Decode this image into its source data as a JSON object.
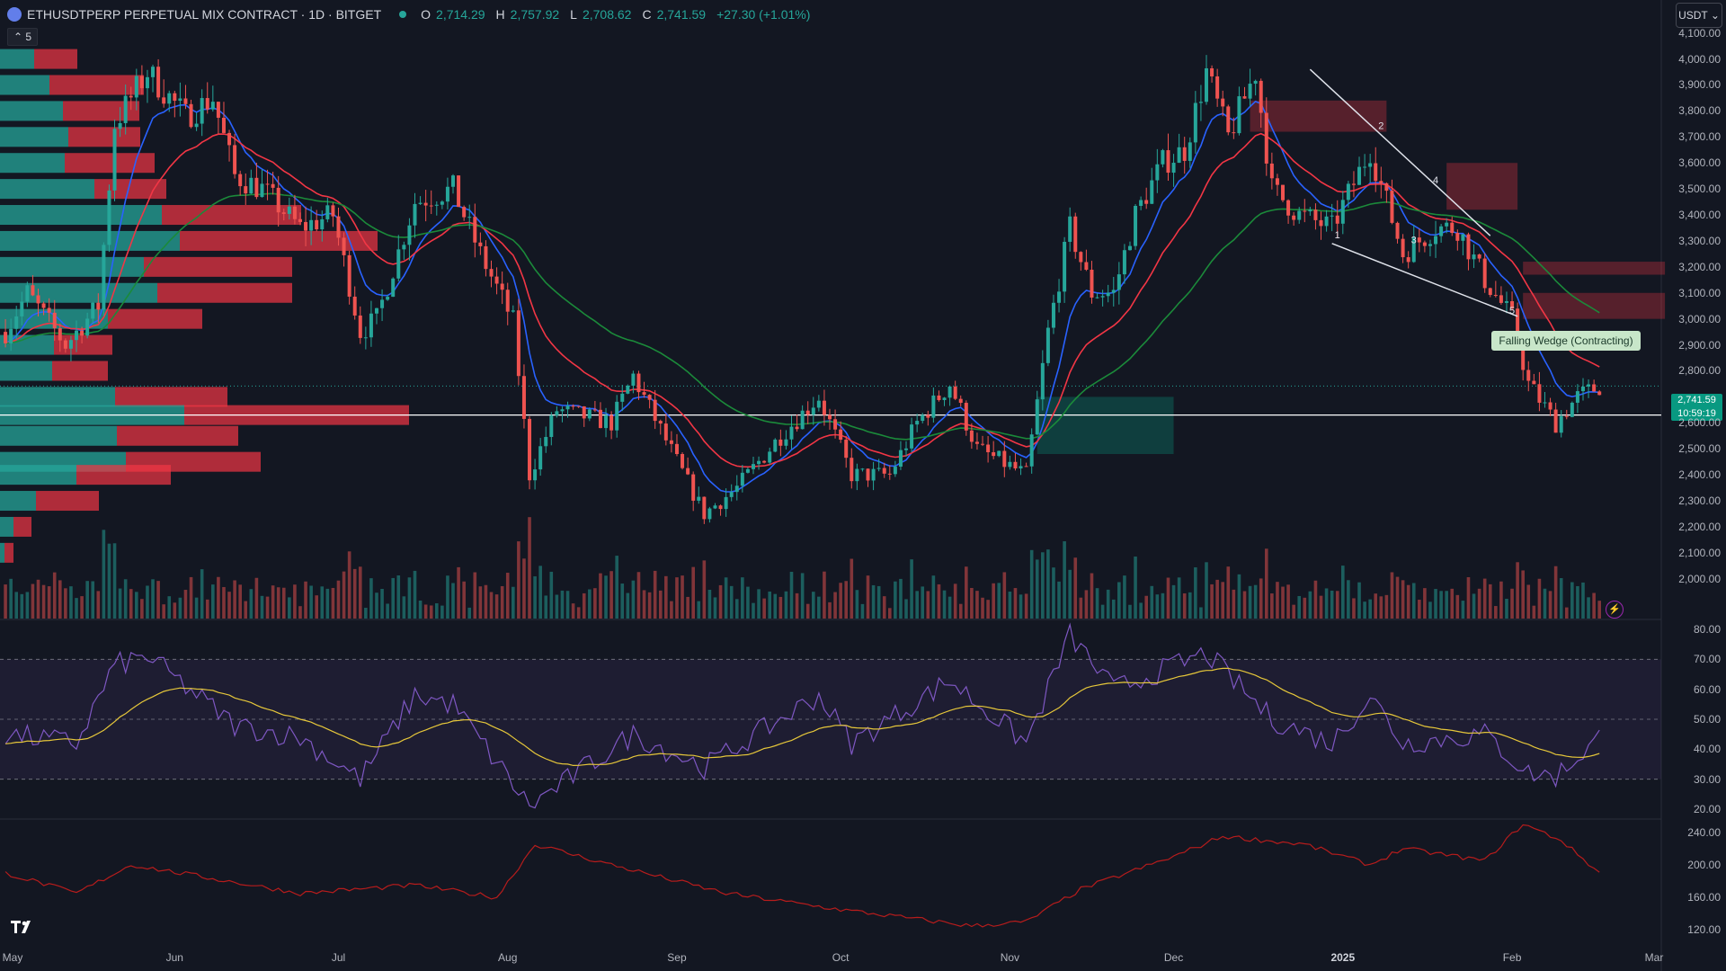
{
  "header": {
    "symbol": "ETHUSDTPERP PERPETUAL MIX CONTRACT · 1D · BITGET",
    "o_label": "O",
    "o_value": "2,714.29",
    "h_label": "H",
    "h_value": "2,757.92",
    "l_label": "L",
    "l_value": "2,708.62",
    "c_label": "C",
    "c_value": "2,741.59",
    "change": "+27.30 (+1.01%)"
  },
  "indicator_badge": "5",
  "currency_button": "USDT ⌄",
  "colors": {
    "up": "#26a69a",
    "down": "#ef5350",
    "ema_fast": "#2962ff",
    "ema_mid": "#f23645",
    "ema_slow": "#1b8a3a",
    "rsi": "#7e57c2",
    "rsi_ma": "#e6c73a",
    "atr": "#b71c1c"
  },
  "price_label": {
    "price": "2,741.59",
    "countdown": "10:59:19"
  },
  "pattern_label": "Falling Wedge (Contracting)",
  "wedge_points": [
    "1",
    "2",
    "3",
    "4",
    "5"
  ],
  "chart_data": {
    "type": "candlestick",
    "price_axis": {
      "ticks": [
        "4,100.00",
        "4,000.00",
        "3,900.00",
        "3,800.00",
        "3,700.00",
        "3,600.00",
        "3,500.00",
        "3,400.00",
        "3,300.00",
        "3,200.00",
        "3,100.00",
        "3,000.00",
        "2,900.00",
        "2,800.00",
        "2,600.00",
        "2,500.00",
        "2,400.00",
        "2,300.00",
        "2,200.00",
        "2,100.00",
        "2,000.00"
      ],
      "range": [
        1930,
        4130
      ]
    },
    "rsi_axis": {
      "ticks": [
        "80.00",
        "70.00",
        "60.00",
        "50.00",
        "40.00",
        "30.00",
        "20.00"
      ],
      "range": [
        17,
        83
      ],
      "bands": [
        70,
        50,
        30
      ]
    },
    "atr_axis": {
      "ticks": [
        "240.00",
        "200.00",
        "160.00",
        "120.00"
      ],
      "range": [
        105,
        255
      ]
    },
    "x_labels": [
      {
        "text": "May",
        "bold": false
      },
      {
        "text": "Jun",
        "bold": false
      },
      {
        "text": "Jul",
        "bold": false
      },
      {
        "text": "Aug",
        "bold": false
      },
      {
        "text": "Sep",
        "bold": false
      },
      {
        "text": "Oct",
        "bold": false
      },
      {
        "text": "Nov",
        "bold": false
      },
      {
        "text": "Dec",
        "bold": false
      },
      {
        "text": "2025",
        "bold": true
      },
      {
        "text": "Feb",
        "bold": false
      },
      {
        "text": "Mar",
        "bold": false
      }
    ],
    "horizontal_line": 2630,
    "anchors": [
      {
        "date": "2024-05-01",
        "close": 2950
      },
      {
        "date": "2024-05-05",
        "close": 3100
      },
      {
        "date": "2024-05-12",
        "close": 2900
      },
      {
        "date": "2024-05-18",
        "close": 3050
      },
      {
        "date": "2024-05-21",
        "close": 3750
      },
      {
        "date": "2024-05-27",
        "close": 3950
      },
      {
        "date": "2024-06-03",
        "close": 3780
      },
      {
        "date": "2024-06-08",
        "close": 3850
      },
      {
        "date": "2024-06-12",
        "close": 3550
      },
      {
        "date": "2024-06-17",
        "close": 3500
      },
      {
        "date": "2024-06-24",
        "close": 3350
      },
      {
        "date": "2024-06-30",
        "close": 3400
      },
      {
        "date": "2024-07-05",
        "close": 2950
      },
      {
        "date": "2024-07-08",
        "close": 3000
      },
      {
        "date": "2024-07-15",
        "close": 3450
      },
      {
        "date": "2024-07-22",
        "close": 3500
      },
      {
        "date": "2024-07-27",
        "close": 3250
      },
      {
        "date": "2024-08-02",
        "close": 2990
      },
      {
        "date": "2024-08-05",
        "close": 2400
      },
      {
        "date": "2024-08-10",
        "close": 2650
      },
      {
        "date": "2024-08-20",
        "close": 2600
      },
      {
        "date": "2024-08-24",
        "close": 2780
      },
      {
        "date": "2024-09-01",
        "close": 2450
      },
      {
        "date": "2024-09-06",
        "close": 2250
      },
      {
        "date": "2024-09-12",
        "close": 2350
      },
      {
        "date": "2024-09-20",
        "close": 2550
      },
      {
        "date": "2024-09-27",
        "close": 2700
      },
      {
        "date": "2024-10-03",
        "close": 2400
      },
      {
        "date": "2024-10-10",
        "close": 2400
      },
      {
        "date": "2024-10-15",
        "close": 2600
      },
      {
        "date": "2024-10-21",
        "close": 2750
      },
      {
        "date": "2024-10-26",
        "close": 2500
      },
      {
        "date": "2024-11-04",
        "close": 2400
      },
      {
        "date": "2024-11-08",
        "close": 2950
      },
      {
        "date": "2024-11-12",
        "close": 3350
      },
      {
        "date": "2024-11-16",
        "close": 3100
      },
      {
        "date": "2024-11-20",
        "close": 3100
      },
      {
        "date": "2024-11-24",
        "close": 3400
      },
      {
        "date": "2024-11-29",
        "close": 3600
      },
      {
        "date": "2024-12-03",
        "close": 3650
      },
      {
        "date": "2024-12-07",
        "close": 3950
      },
      {
        "date": "2024-12-11",
        "close": 3700
      },
      {
        "date": "2024-12-16",
        "close": 3950
      },
      {
        "date": "2024-12-19",
        "close": 3500
      },
      {
        "date": "2024-12-24",
        "close": 3400
      },
      {
        "date": "2024-12-30",
        "close": 3350
      },
      {
        "date": "2025-01-06",
        "close": 3650
      },
      {
        "date": "2025-01-12",
        "close": 3250
      },
      {
        "date": "2025-01-18",
        "close": 3350
      },
      {
        "date": "2025-01-22",
        "close": 3350
      },
      {
        "date": "2025-01-27",
        "close": 3150
      },
      {
        "date": "2025-02-01",
        "close": 3000
      },
      {
        "date": "2025-02-04",
        "close": 2750
      },
      {
        "date": "2025-02-09",
        "close": 2600
      },
      {
        "date": "2025-02-13",
        "close": 2700
      },
      {
        "date": "2025-02-17",
        "close": 2741.59
      }
    ],
    "rsi_anchors": [
      {
        "date": "2024-05-01",
        "rsi": 45
      },
      {
        "date": "2024-05-14",
        "rsi": 42
      },
      {
        "date": "2024-05-21",
        "rsi": 68
      },
      {
        "date": "2024-05-27",
        "rsi": 71
      },
      {
        "date": "2024-06-12",
        "rsi": 48
      },
      {
        "date": "2024-06-24",
        "rsi": 44
      },
      {
        "date": "2024-07-05",
        "rsi": 30
      },
      {
        "date": "2024-07-15",
        "rsi": 58
      },
      {
        "date": "2024-07-22",
        "rsi": 55
      },
      {
        "date": "2024-08-05",
        "rsi": 21
      },
      {
        "date": "2024-08-24",
        "rsi": 45
      },
      {
        "date": "2024-09-06",
        "rsi": 34
      },
      {
        "date": "2024-09-27",
        "rsi": 58
      },
      {
        "date": "2024-10-03",
        "rsi": 42
      },
      {
        "date": "2024-10-21",
        "rsi": 63
      },
      {
        "date": "2024-11-04",
        "rsi": 42
      },
      {
        "date": "2024-11-12",
        "rsi": 78
      },
      {
        "date": "2024-11-20",
        "rsi": 60
      },
      {
        "date": "2024-12-07",
        "rsi": 72
      },
      {
        "date": "2024-12-19",
        "rsi": 50
      },
      {
        "date": "2024-12-30",
        "rsi": 42
      },
      {
        "date": "2025-01-06",
        "rsi": 58
      },
      {
        "date": "2025-01-12",
        "rsi": 42
      },
      {
        "date": "2025-01-27",
        "rsi": 45
      },
      {
        "date": "2025-02-04",
        "rsi": 32
      },
      {
        "date": "2025-02-09",
        "rsi": 31
      },
      {
        "date": "2025-02-17",
        "rsi": 44
      }
    ],
    "atr_anchors": [
      {
        "date": "2024-05-01",
        "atr": 190
      },
      {
        "date": "2024-05-14",
        "atr": 165
      },
      {
        "date": "2024-05-24",
        "atr": 200
      },
      {
        "date": "2024-06-24",
        "atr": 165
      },
      {
        "date": "2024-07-15",
        "atr": 175
      },
      {
        "date": "2024-07-30",
        "atr": 160
      },
      {
        "date": "2024-08-06",
        "atr": 225
      },
      {
        "date": "2024-08-20",
        "atr": 200
      },
      {
        "date": "2024-09-10",
        "atr": 165
      },
      {
        "date": "2024-10-01",
        "atr": 145
      },
      {
        "date": "2024-10-25",
        "atr": 125
      },
      {
        "date": "2024-11-04",
        "atr": 130
      },
      {
        "date": "2024-11-14",
        "atr": 170
      },
      {
        "date": "2024-12-01",
        "atr": 210
      },
      {
        "date": "2024-12-10",
        "atr": 235
      },
      {
        "date": "2024-12-25",
        "atr": 225
      },
      {
        "date": "2025-01-06",
        "atr": 200
      },
      {
        "date": "2025-01-12",
        "atr": 220
      },
      {
        "date": "2025-01-27",
        "atr": 205
      },
      {
        "date": "2025-02-03",
        "atr": 250
      },
      {
        "date": "2025-02-10",
        "atr": 230
      },
      {
        "date": "2025-02-17",
        "atr": 190
      }
    ],
    "volume_profile": [
      {
        "price": 4000,
        "buy": 38,
        "sell": 48
      },
      {
        "price": 3900,
        "buy": 55,
        "sell": 105
      },
      {
        "price": 3800,
        "buy": 70,
        "sell": 85
      },
      {
        "price": 3700,
        "buy": 76,
        "sell": 80
      },
      {
        "price": 3600,
        "buy": 72,
        "sell": 100
      },
      {
        "price": 3500,
        "buy": 105,
        "sell": 80
      },
      {
        "price": 3400,
        "buy": 180,
        "sell": 155
      },
      {
        "price": 3300,
        "buy": 200,
        "sell": 220
      },
      {
        "price": 3200,
        "buy": 160,
        "sell": 165
      },
      {
        "price": 3100,
        "buy": 175,
        "sell": 150
      },
      {
        "price": 3000,
        "buy": 120,
        "sell": 105
      },
      {
        "price": 2900,
        "buy": 60,
        "sell": 65
      },
      {
        "price": 2800,
        "buy": 58,
        "sell": 62
      },
      {
        "price": 2700,
        "buy": 128,
        "sell": 125
      },
      {
        "price": 2630,
        "buy": 205,
        "sell": 250
      },
      {
        "price": 2550,
        "buy": 130,
        "sell": 135
      },
      {
        "price": 2450,
        "buy": 140,
        "sell": 150
      },
      {
        "price": 2400,
        "buy": 85,
        "sell": 105
      },
      {
        "price": 2300,
        "buy": 40,
        "sell": 70
      },
      {
        "price": 2200,
        "buy": 15,
        "sell": 20
      },
      {
        "price": 2100,
        "buy": 5,
        "sell": 10
      }
    ],
    "zones": [
      {
        "start": "2024-12-15",
        "end": "2025-01-09",
        "low": 3720,
        "high": 3840,
        "color": "#f23645"
      },
      {
        "start": "2025-01-20",
        "end": "2025-02-02",
        "low": 3420,
        "high": 3600,
        "color": "#f23645"
      },
      {
        "start": "2025-02-03",
        "end": "2025-03-01",
        "low": 3170,
        "high": 3220,
        "color": "#f23645"
      },
      {
        "start": "2025-02-03",
        "end": "2025-03-01",
        "low": 3000,
        "high": 3100,
        "color": "#f23645"
      },
      {
        "start": "2024-11-06",
        "end": "2024-12-01",
        "low": 2480,
        "high": 2700,
        "color": "#089981"
      }
    ],
    "wedge_upper": [
      {
        "date": "2024-12-26",
        "price": 3960
      },
      {
        "date": "2025-01-28",
        "price": 3320
      }
    ],
    "wedge_lower": [
      {
        "date": "2024-12-30",
        "price": 3290
      },
      {
        "date": "2025-02-02",
        "price": 3010
      }
    ],
    "wedge_labels": [
      {
        "date": "2024-12-31",
        "price": 3300
      },
      {
        "date": "2025-01-08",
        "price": 3720
      },
      {
        "date": "2025-01-14",
        "price": 3280
      },
      {
        "date": "2025-01-18",
        "price": 3510
      },
      {
        "date": "2025-02-01",
        "price": 3010
      }
    ]
  }
}
